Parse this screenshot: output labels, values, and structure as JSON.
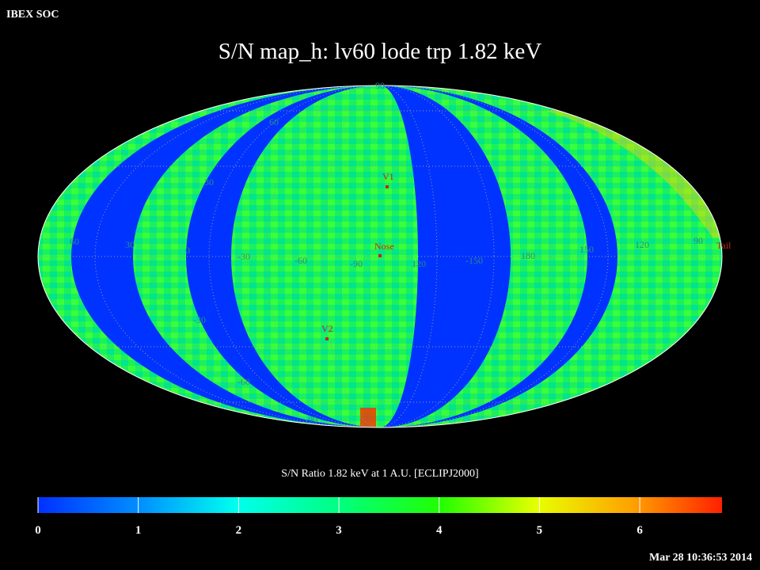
{
  "header": {
    "source": "IBEX SOC",
    "title": "S/N  map_h: lv60 lode trp 1.82 keV",
    "timestamp": "Mar 28 10:36:53 2014"
  },
  "map": {
    "latitude_labels": [
      "90",
      "60",
      "30",
      "-30",
      "-60",
      "-90"
    ],
    "longitude_labels": [
      "60",
      "30",
      "0",
      "-30",
      "-60",
      "-90",
      "120",
      "-150",
      "180",
      "150",
      "120",
      "90"
    ],
    "markers": [
      "V1",
      "Nose",
      "V2",
      "Tail"
    ]
  },
  "colorbar": {
    "label": "S/N Ratio 1.82 keV at 1 A.U. [ECLIPJ2000]",
    "range": [
      0,
      6.82
    ],
    "ticks": [
      0,
      1,
      2,
      3,
      4,
      5,
      6
    ]
  }
}
